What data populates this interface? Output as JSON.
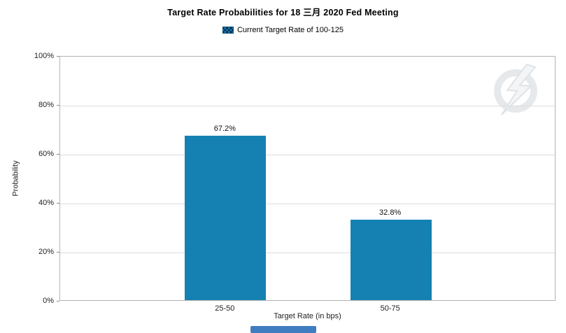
{
  "chart_data": {
    "type": "bar",
    "title": "Target Rate Probabilities for 18 三月 2020 Fed Meeting",
    "legend": {
      "label": "Current Target Rate of 100-125"
    },
    "categories": [
      "25-50",
      "50-75"
    ],
    "values": [
      67.2,
      32.8
    ],
    "value_labels": [
      "67.2%",
      "32.8%"
    ],
    "xlabel": "Target Rate (in bps)",
    "ylabel": "Probability",
    "ylim": [
      0,
      100
    ],
    "ytick_labels": [
      "0%",
      "20%",
      "40%",
      "60%",
      "80%",
      "100%"
    ],
    "bar_color": "#1581b2",
    "grid": true,
    "legend_position": "top"
  },
  "ui": {
    "scrollbar_color": "#3f7cc0"
  }
}
